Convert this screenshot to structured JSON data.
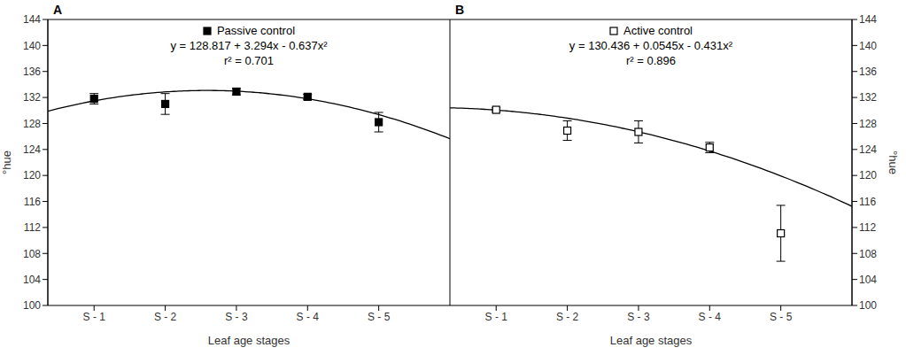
{
  "chart_data": [
    {
      "type": "scatter",
      "panel": "A",
      "x_label": "Leaf age stages",
      "y_label": "°hue",
      "x": [
        1,
        2,
        3,
        4,
        5
      ],
      "xlim": [
        0.35,
        6.0
      ],
      "xticks": [
        {
          "value": 1,
          "label": "S - 1"
        },
        {
          "value": 2,
          "label": "S - 2"
        },
        {
          "value": 3,
          "label": "S - 3"
        },
        {
          "value": 4,
          "label": "S - 4"
        },
        {
          "value": 5,
          "label": "S - 5"
        }
      ],
      "ylim": [
        100,
        144
      ],
      "yticks": [
        100,
        104,
        108,
        112,
        116,
        120,
        124,
        128,
        132,
        136,
        140,
        144
      ],
      "legend": "top",
      "series": [
        {
          "name": "Passive control",
          "color": "#000000",
          "marker": "square_filled",
          "values": [
            131.8,
            131.0,
            132.9,
            132.1,
            128.2
          ],
          "errors": [
            0.8,
            1.6,
            0.5,
            0.4,
            1.5
          ]
        }
      ],
      "fit": {
        "equation": "y = 128.817 + 3.294x - 0.637x²",
        "r_squared": "r² = 0.701",
        "coefficients": [
          128.817,
          3.294,
          -0.637
        ],
        "color": "#000000"
      }
    },
    {
      "type": "scatter",
      "panel": "B",
      "x_label": "Leaf age stages",
      "y_label": "°hue",
      "x": [
        1,
        2,
        3,
        4,
        5
      ],
      "xlim": [
        0.35,
        6.0
      ],
      "xticks": [
        {
          "value": 1,
          "label": "S - 1"
        },
        {
          "value": 2,
          "label": "S - 2"
        },
        {
          "value": 3,
          "label": "S - 3"
        },
        {
          "value": 4,
          "label": "S - 4"
        },
        {
          "value": 5,
          "label": "S - 5"
        }
      ],
      "ylim": [
        100,
        144
      ],
      "yticks": [
        100,
        104,
        108,
        112,
        116,
        120,
        124,
        128,
        132,
        136,
        140,
        144
      ],
      "legend": "top",
      "series": [
        {
          "name": "Active control",
          "color": "#000000",
          "marker": "square_open",
          "values": [
            130.1,
            126.9,
            126.7,
            124.3,
            111.1
          ],
          "errors": [
            0.3,
            1.5,
            1.7,
            0.8,
            4.3
          ]
        }
      ],
      "fit": {
        "equation": "y = 130.436 + 0.0545x - 0.431x²",
        "r_squared": "r² = 0.896",
        "coefficients": [
          130.436,
          0.0545,
          -0.431
        ],
        "color": "#000000"
      }
    }
  ]
}
